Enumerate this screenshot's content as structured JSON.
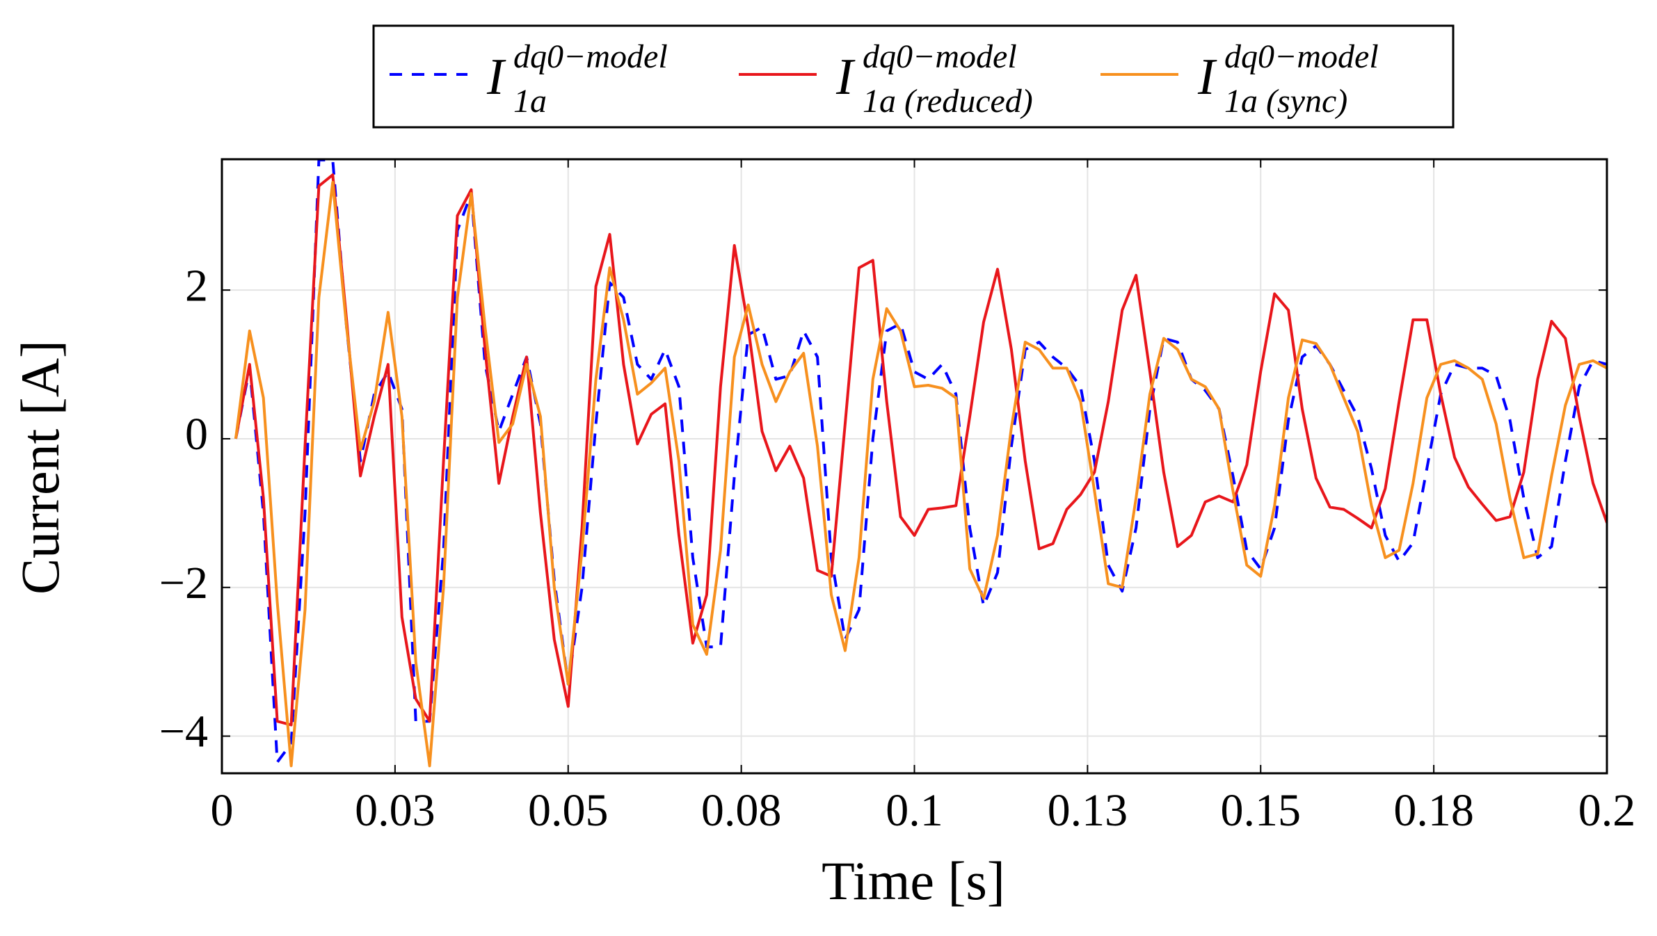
{
  "chart_data": {
    "type": "line",
    "xlabel": "Time [s]",
    "ylabel": "Current [A]",
    "legend": "top",
    "grid": true,
    "xlim": [
      0,
      0.2
    ],
    "ylim": [
      -4.5,
      3.76
    ],
    "xticks": [
      0,
      {
        "value": 0.025,
        "label": "0.03"
      },
      0.05,
      {
        "value": 0.075,
        "label": "0.08"
      },
      0.1,
      {
        "value": 0.125,
        "label": "0.13"
      },
      0.15,
      {
        "value": 0.175,
        "label": "0.18"
      },
      0.2
    ],
    "yticks": [
      {
        "value": -4,
        "label": "−4"
      },
      {
        "value": -2,
        "label": "−2"
      },
      0,
      2
    ],
    "x": [
      0.002,
      0.004,
      0.006,
      0.008,
      0.01,
      0.012,
      0.014,
      0.016,
      0.018,
      0.02,
      0.022,
      0.024,
      0.026,
      0.028,
      0.03,
      0.032,
      0.034,
      0.036,
      0.038,
      0.04,
      0.042,
      0.044,
      0.046,
      0.048,
      0.05,
      0.052,
      0.054,
      0.056,
      0.058,
      0.06,
      0.062,
      0.064,
      0.066,
      0.068,
      0.07,
      0.072,
      0.074,
      0.076,
      0.078,
      0.08,
      0.082,
      0.084,
      0.086,
      0.088,
      0.09,
      0.092,
      0.094,
      0.096,
      0.098,
      0.1,
      0.102,
      0.104,
      0.106,
      0.108,
      0.11,
      0.112,
      0.114,
      0.116,
      0.118,
      0.12,
      0.122,
      0.124,
      0.126,
      0.128,
      0.13,
      0.132,
      0.134,
      0.136,
      0.138,
      0.14,
      0.142,
      0.144,
      0.146,
      0.148,
      0.15,
      0.152,
      0.154,
      0.156,
      0.158,
      0.16,
      0.162,
      0.164,
      0.166,
      0.168,
      0.17,
      0.172,
      0.174,
      0.176,
      0.178,
      0.18,
      0.182,
      0.184,
      0.186,
      0.188,
      0.19,
      0.192,
      0.194,
      0.196,
      0.198,
      0.2
    ],
    "series": [
      {
        "name": "I",
        "superscript": "dq0−model",
        "subscript": "1a",
        "color": "#0000ff",
        "dashed": true,
        "values": [
          0,
          0.95,
          -1.0,
          -4.35,
          -4.1,
          -1.0,
          3.75,
          3.75,
          1.5,
          -0.3,
          0.6,
          0.9,
          0.4,
          -3.8,
          -3.8,
          -1.5,
          2.8,
          3.3,
          1.0,
          0.1,
          0.6,
          1.1,
          0.2,
          -1.9,
          -3.3,
          -2.0,
          0.2,
          2.1,
          1.9,
          1.0,
          0.8,
          1.2,
          0.7,
          -1.6,
          -2.8,
          -2.8,
          -0.5,
          1.4,
          1.5,
          0.8,
          0.85,
          1.45,
          1.1,
          -1.6,
          -2.7,
          -2.3,
          0.0,
          1.45,
          1.55,
          0.9,
          0.8,
          1.0,
          0.6,
          -1.2,
          -2.25,
          -1.8,
          -0.1,
          1.2,
          1.3,
          1.1,
          0.95,
          0.7,
          -0.3,
          -1.7,
          -2.05,
          -1.2,
          0.4,
          1.35,
          1.3,
          0.8,
          0.65,
          0.4,
          -0.5,
          -1.5,
          -1.75,
          -1.2,
          0.25,
          1.1,
          1.25,
          1.0,
          0.65,
          0.3,
          -0.4,
          -1.3,
          -1.65,
          -1.4,
          -0.4,
          0.6,
          1.0,
          0.95,
          0.95,
          0.85,
          0.25,
          -0.8,
          -1.6,
          -1.45,
          -0.3,
          0.7,
          1.05,
          1.0
        ]
      },
      {
        "name": "I",
        "superscript": "dq0−model",
        "subscript": "1a (reduced)",
        "color": "#e8161b",
        "dashed": false,
        "values": [
          0,
          1.0,
          -0.8,
          -3.8,
          -3.85,
          -0.1,
          3.4,
          3.55,
          1.6,
          -0.5,
          0.3,
          1.0,
          -2.4,
          -3.5,
          -3.8,
          -0.3,
          3.0,
          3.35,
          1.2,
          -0.6,
          0.3,
          1.1,
          -1.0,
          -2.7,
          -3.6,
          -1.2,
          2.05,
          2.75,
          1.0,
          -0.07,
          0.33,
          0.47,
          -1.3,
          -2.75,
          -2.1,
          0.7,
          2.6,
          1.5,
          0.1,
          -0.43,
          -0.1,
          -0.53,
          -1.77,
          -1.85,
          0.2,
          2.3,
          2.4,
          0.5,
          -1.05,
          -1.3,
          -0.95,
          -0.93,
          -0.9,
          0.3,
          1.57,
          2.28,
          1.2,
          -0.3,
          -1.48,
          -1.41,
          -0.95,
          -0.75,
          -0.45,
          0.5,
          1.73,
          2.2,
          0.9,
          -0.45,
          -1.45,
          -1.3,
          -0.85,
          -0.77,
          -0.85,
          -0.35,
          0.9,
          1.95,
          1.73,
          0.4,
          -0.53,
          -0.92,
          -0.95,
          -1.07,
          -1.2,
          -0.67,
          0.5,
          1.6,
          1.6,
          0.6,
          -0.25,
          -0.65,
          -0.88,
          -1.1,
          -1.05,
          -0.45,
          0.8,
          1.58,
          1.35,
          0.3,
          -0.6,
          -1.13
        ]
      },
      {
        "name": "I",
        "superscript": "dq0−model",
        "subscript": "1a (sync)",
        "color": "#f7901e",
        "dashed": false,
        "values": [
          0,
          1.45,
          0.55,
          -2.2,
          -4.4,
          -2.3,
          1.9,
          3.45,
          1.5,
          -0.15,
          0.5,
          1.7,
          0.3,
          -3.0,
          -4.4,
          -2.0,
          1.9,
          3.3,
          1.5,
          -0.05,
          0.2,
          1.0,
          0.3,
          -2.0,
          -3.3,
          -1.5,
          0.8,
          2.3,
          1.6,
          0.6,
          0.75,
          0.95,
          -0.3,
          -2.5,
          -2.9,
          -1.5,
          1.1,
          1.8,
          1.0,
          0.5,
          0.9,
          1.15,
          -0.1,
          -2.1,
          -2.85,
          -1.6,
          0.8,
          1.75,
          1.45,
          0.7,
          0.72,
          0.68,
          0.55,
          -1.75,
          -2.15,
          -1.3,
          0.15,
          1.3,
          1.2,
          0.95,
          0.95,
          0.5,
          -0.7,
          -1.95,
          -2.0,
          -0.8,
          0.6,
          1.35,
          1.2,
          0.8,
          0.7,
          0.4,
          -0.7,
          -1.7,
          -1.85,
          -0.9,
          0.55,
          1.33,
          1.28,
          1.0,
          0.55,
          0.1,
          -0.9,
          -1.6,
          -1.5,
          -0.6,
          0.55,
          1.0,
          1.05,
          0.95,
          0.8,
          0.2,
          -0.8,
          -1.6,
          -1.55,
          -0.5,
          0.45,
          1.0,
          1.05,
          0.95
        ]
      }
    ]
  }
}
